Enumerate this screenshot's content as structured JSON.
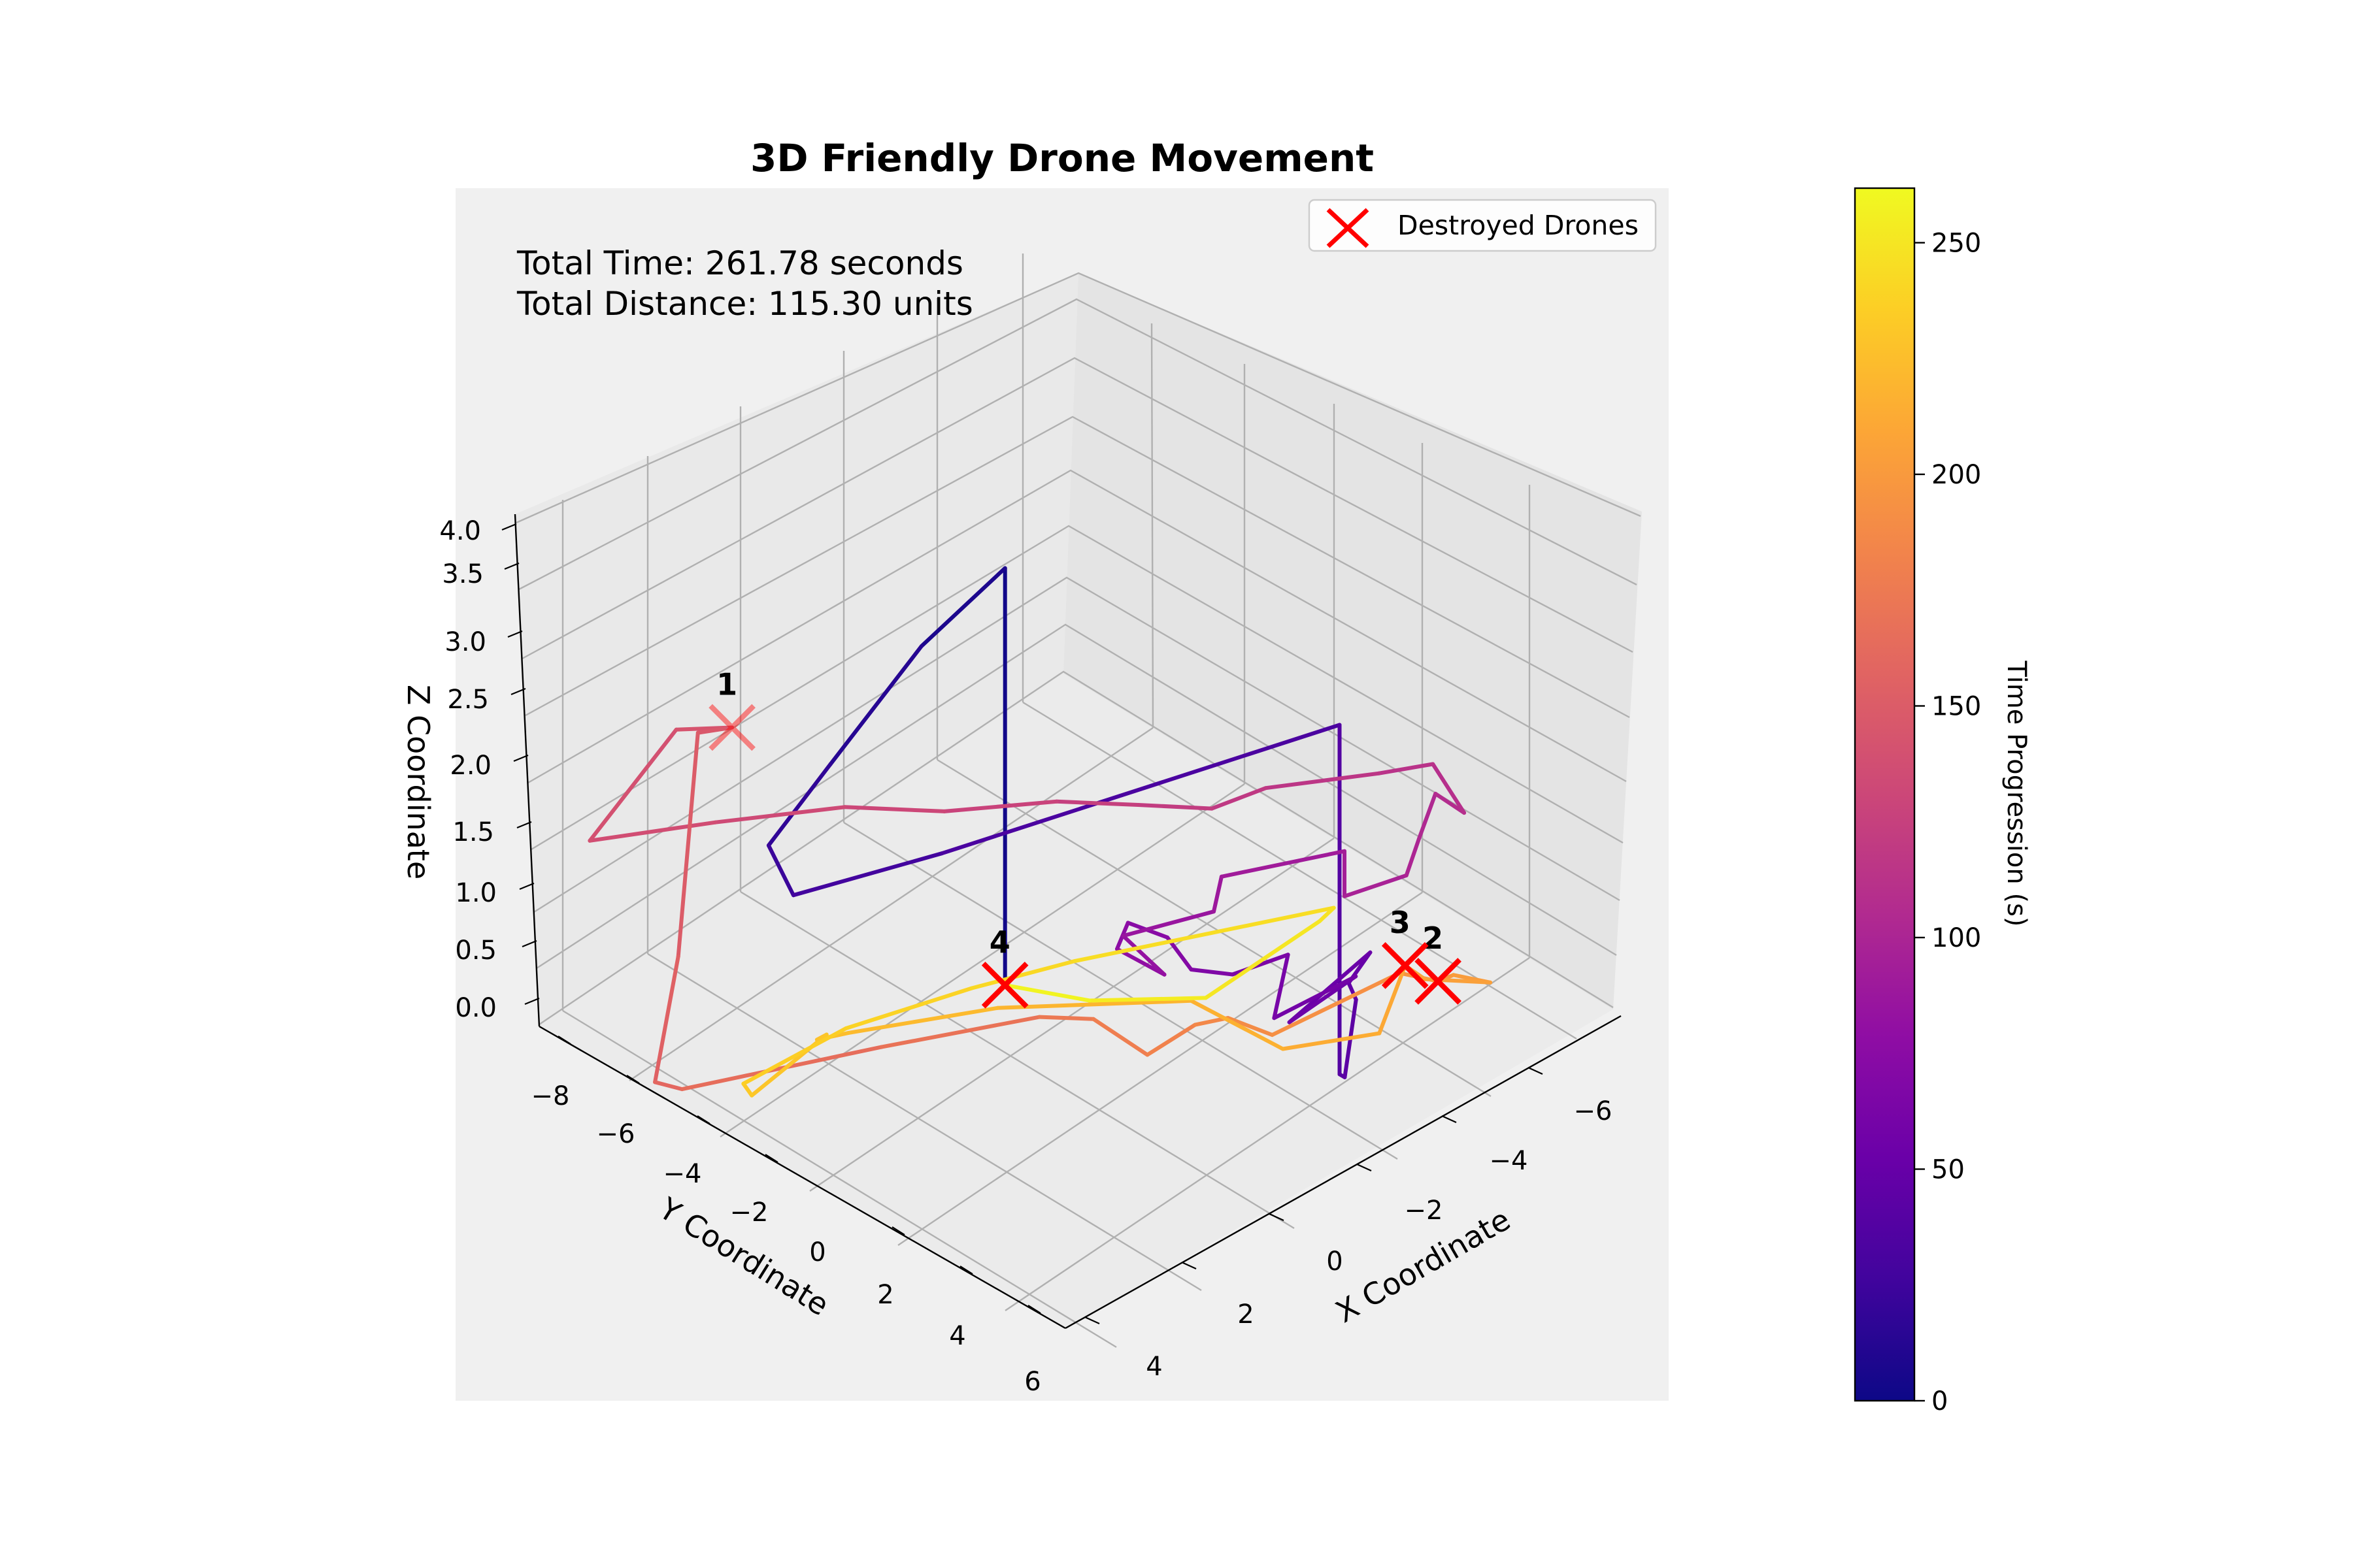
{
  "chart_data": {
    "type": "line",
    "title": "3D Friendly Drone Movement",
    "annotation_lines": [
      "Total Time: 261.78 seconds",
      "Total Distance: 115.30 units"
    ],
    "xlabel": "X Coordinate",
    "ylabel": "Y Coordinate",
    "zlabel": "Z Coordinate",
    "x_ticks": [
      "4",
      "2",
      "0",
      "−2",
      "−4",
      "−6"
    ],
    "y_ticks": [
      "−8",
      "−6",
      "−4",
      "−2",
      "0",
      "2",
      "4",
      "6"
    ],
    "z_ticks": [
      "0.0",
      "0.5",
      "1.0",
      "1.5",
      "2.0",
      "2.5",
      "3.0",
      "3.5",
      "4.0"
    ],
    "colorbar": {
      "label": "Time Progression (s)",
      "ticks": [
        "0",
        "50",
        "100",
        "150",
        "200",
        "250"
      ],
      "min": 0,
      "max": 261.78,
      "colormap": "plasma"
    },
    "legend": {
      "label": "Destroyed Drones",
      "placement": "top-right",
      "marker_color": "#ff0000"
    },
    "destroyed_drones": [
      {
        "label": "1",
        "x": 4.3,
        "y": -4.0,
        "z": 3.85,
        "t": 150
      },
      {
        "label": "2",
        "x": -3.5,
        "y": 5.5,
        "z": 1.0,
        "t": 200
      },
      {
        "label": "3",
        "x": -2.7,
        "y": 5.4,
        "z": 1.0,
        "t": 210
      },
      {
        "label": "4",
        "x": 4.5,
        "y": 2.2,
        "z": 0.1,
        "t": 261.78
      }
    ],
    "path_points": [
      {
        "x": 4.5,
        "y": 2.2,
        "z": 0.1,
        "t": 0
      },
      {
        "x": 4.5,
        "y": 2.2,
        "z": 3.8,
        "t": 5
      },
      {
        "x": 3.8,
        "y": -0.2,
        "z": 3.8,
        "t": 10
      },
      {
        "x": 2.8,
        "y": -3.0,
        "z": 3.6,
        "t": 15
      },
      {
        "x": 2.0,
        "y": -5.0,
        "z": 3.5,
        "t": 20
      },
      {
        "x": 1.3,
        "y": -5.0,
        "z": 3.2,
        "t": 25
      },
      {
        "x": 0.3,
        "y": -2.5,
        "z": 3.2,
        "t": 30
      },
      {
        "x": -2.0,
        "y": 4.5,
        "z": 3.2,
        "t": 35
      },
      {
        "x": -2.0,
        "y": 4.5,
        "z": 0.1,
        "t": 40
      },
      {
        "x": -2.4,
        "y": 4.3,
        "z": 0.2,
        "t": 42
      },
      {
        "x": -3.1,
        "y": 4.0,
        "z": 1.1,
        "t": 45
      },
      {
        "x": -3.4,
        "y": 3.6,
        "z": 1.4,
        "t": 48
      },
      {
        "x": -3.5,
        "y": 4.0,
        "z": 1.6,
        "t": 51
      },
      {
        "x": -3.0,
        "y": 2.6,
        "z": 1.2,
        "t": 54
      },
      {
        "x": -3.6,
        "y": 3.6,
        "z": 1.5,
        "t": 57
      },
      {
        "x": -2.7,
        "y": 2.5,
        "z": 1.2,
        "t": 60
      },
      {
        "x": -2.2,
        "y": 3.2,
        "z": 1.5,
        "t": 63
      },
      {
        "x": -1.4,
        "y": 2.6,
        "z": 1.3,
        "t": 66
      },
      {
        "x": -1.0,
        "y": 2.0,
        "z": 1.4,
        "t": 69
      },
      {
        "x": -0.2,
        "y": 2.1,
        "z": 1.5,
        "t": 72
      },
      {
        "x": 0.4,
        "y": 1.7,
        "z": 1.6,
        "t": 75
      },
      {
        "x": 0.2,
        "y": 1.3,
        "z": 1.5,
        "t": 78
      },
      {
        "x": -0.5,
        "y": 1.8,
        "z": 1.3,
        "t": 81
      },
      {
        "x": -0.1,
        "y": 1.2,
        "z": 1.7,
        "t": 84
      },
      {
        "x": -1.0,
        "y": 2.5,
        "z": 1.8,
        "t": 87
      },
      {
        "x": -1.6,
        "y": 2.2,
        "z": 2.3,
        "t": 90
      },
      {
        "x": -2.9,
        "y": 3.9,
        "z": 2.4,
        "t": 93
      },
      {
        "x": -2.9,
        "y": 3.9,
        "z": 2.0,
        "t": 96
      },
      {
        "x": -3.5,
        "y": 4.8,
        "z": 2.1,
        "t": 99
      },
      {
        "x": -3.6,
        "y": 5.0,
        "z": 2.4,
        "t": 102
      },
      {
        "x": -3.3,
        "y": 5.6,
        "z": 2.6,
        "t": 105
      },
      {
        "x": -3.6,
        "y": 6.0,
        "z": 2.4,
        "t": 108
      },
      {
        "x": -3.1,
        "y": 5.7,
        "z": 2.8,
        "t": 111
      },
      {
        "x": -2.6,
        "y": 4.9,
        "z": 2.8,
        "t": 114
      },
      {
        "x": -1.7,
        "y": 3.1,
        "z": 2.9,
        "t": 117
      },
      {
        "x": -1.2,
        "y": 2.3,
        "z": 2.8,
        "t": 120
      },
      {
        "x": -0.4,
        "y": 1.3,
        "z": 2.9,
        "t": 123
      },
      {
        "x": 0.5,
        "y": 0.2,
        "z": 3.0,
        "t": 126
      },
      {
        "x": 1.5,
        "y": -1.5,
        "z": 3.1,
        "t": 129
      },
      {
        "x": 2.4,
        "y": -3.0,
        "z": 3.3,
        "t": 132
      },
      {
        "x": 3.5,
        "y": -5.0,
        "z": 3.4,
        "t": 135
      },
      {
        "x": 5.0,
        "y": -6.6,
        "z": 3.3,
        "t": 138
      },
      {
        "x": 4.6,
        "y": -5.0,
        "z": 4.0,
        "t": 141
      },
      {
        "x": 4.3,
        "y": -4.0,
        "z": 3.85,
        "t": 145
      },
      {
        "x": 4.5,
        "y": -4.6,
        "z": 3.9,
        "t": 148
      },
      {
        "x": 4.8,
        "y": -4.8,
        "z": 1.9,
        "t": 152
      },
      {
        "x": 5.2,
        "y": -5.0,
        "z": 0.75,
        "t": 157
      },
      {
        "x": 5.2,
        "y": -4.4,
        "z": 0.55,
        "t": 162
      },
      {
        "x": 3.4,
        "y": -1.4,
        "z": 0.6,
        "t": 167
      },
      {
        "x": 2.0,
        "y": 1.0,
        "z": 0.6,
        "t": 172
      },
      {
        "x": 1.5,
        "y": 1.8,
        "z": 0.5,
        "t": 176
      },
      {
        "x": 1.0,
        "y": 2.6,
        "z": 0.1,
        "t": 180
      },
      {
        "x": 0.8,
        "y": 3.5,
        "z": 0.2,
        "t": 184
      },
      {
        "x": 0.0,
        "y": 3.6,
        "z": 0.4,
        "t": 188
      },
      {
        "x": -1.5,
        "y": 3.4,
        "z": 0.6,
        "t": 191
      },
      {
        "x": -2.8,
        "y": 5.2,
        "z": 1.0,
        "t": 194
      },
      {
        "x": -3.5,
        "y": 5.5,
        "z": 1.0,
        "t": 197
      },
      {
        "x": -3.3,
        "y": 6.0,
        "z": 0.9,
        "t": 200
      },
      {
        "x": -3.7,
        "y": 6.5,
        "z": 0.8,
        "t": 203
      },
      {
        "x": -2.5,
        "y": 6.0,
        "z": 0.7,
        "t": 206
      },
      {
        "x": -2.7,
        "y": 5.4,
        "z": 1.0,
        "t": 209
      },
      {
        "x": -2.1,
        "y": 5.3,
        "z": 0.3,
        "t": 212
      },
      {
        "x": -0.4,
        "y": 4.5,
        "z": 0.0,
        "t": 215
      },
      {
        "x": 1.8,
        "y": 4.2,
        "z": 0.05,
        "t": 218
      },
      {
        "x": 4.2,
        "y": 1.8,
        "z": 0.05,
        "t": 221
      },
      {
        "x": 5.6,
        "y": -0.4,
        "z": 0.05,
        "t": 224
      },
      {
        "x": 5.6,
        "y": -1.1,
        "z": 0.15,
        "t": 226
      },
      {
        "x": 5.2,
        "y": -1.2,
        "z": 0.3,
        "t": 228
      },
      {
        "x": 4.0,
        "y": -3.8,
        "z": 0.6,
        "t": 231
      },
      {
        "x": 3.6,
        "y": -4.3,
        "z": 0.9,
        "t": 234
      },
      {
        "x": 3.0,
        "y": -2.5,
        "z": 1.1,
        "t": 237
      },
      {
        "x": 2.0,
        "y": -0.5,
        "z": 1.2,
        "t": 240
      },
      {
        "x": 1.0,
        "y": 1.0,
        "z": 1.3,
        "t": 243
      },
      {
        "x": -1.2,
        "y": 5.0,
        "z": 1.3,
        "t": 246
      },
      {
        "x": -0.8,
        "y": 5.0,
        "z": 1.1,
        "t": 249
      },
      {
        "x": 0.5,
        "y": 3.5,
        "z": 0.5,
        "t": 252
      },
      {
        "x": 2.5,
        "y": 2.5,
        "z": 0.3,
        "t": 256
      },
      {
        "x": 4.5,
        "y": 2.2,
        "z": 0.1,
        "t": 261.78
      }
    ]
  }
}
